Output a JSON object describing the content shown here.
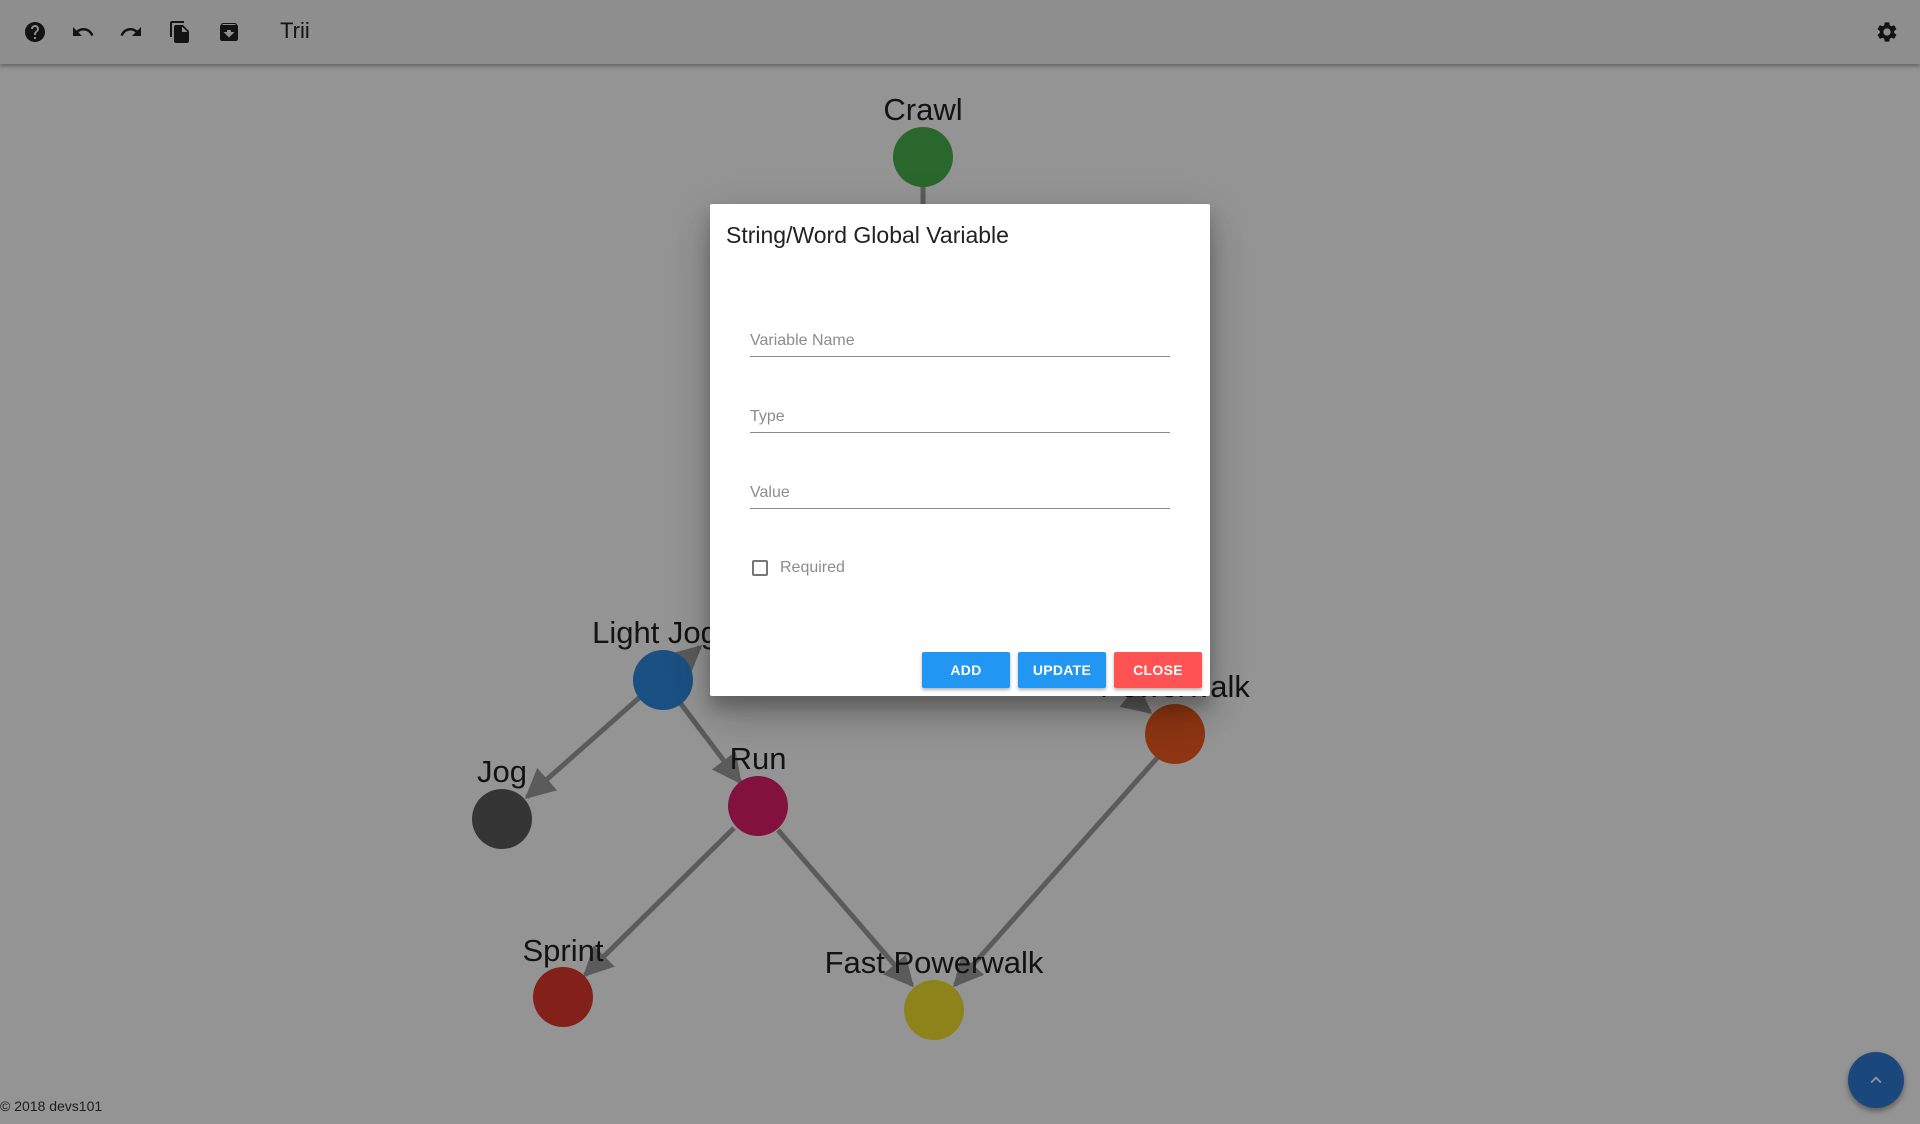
{
  "app": {
    "title": "Trii"
  },
  "toolbar": {
    "icons": [
      "help-icon",
      "undo-icon",
      "redo-icon",
      "copy-icon",
      "archive-icon",
      "settings-icon"
    ]
  },
  "graph": {
    "nodes": [
      {
        "label": "Crawl",
        "color": "#48b14d"
      },
      {
        "label": "Light Jog",
        "color": "#2f8ae0"
      },
      {
        "label": "Jog",
        "color": "#5c5c5c"
      },
      {
        "label": "Run",
        "color": "#e0206a"
      },
      {
        "label": "Sprint",
        "color": "#e2372c"
      },
      {
        "label": "Fast Powerwalk",
        "color": "#f2e42f"
      },
      {
        "label": "Powerwalk",
        "color": "#f55d22"
      }
    ],
    "edge_color": "#9e9e9e"
  },
  "dialog": {
    "title": "String/Word Global Variable",
    "fields": {
      "variable_name": {
        "placeholder": "Variable Name",
        "value": ""
      },
      "type": {
        "placeholder": "Type",
        "value": ""
      },
      "value": {
        "placeholder": "Value",
        "value": ""
      }
    },
    "required": {
      "label": "Required",
      "checked": false
    },
    "buttons": {
      "add": {
        "label": "ADD",
        "color": "#2196f3"
      },
      "update": {
        "label": "UPDATE",
        "color": "#2196f3"
      },
      "close": {
        "label": "CLOSE",
        "color": "#ff5252"
      }
    }
  },
  "footer": {
    "text": "© 2018 devs101"
  },
  "fab": {
    "icon": "chevron-up-icon",
    "color": "#2d7ad6"
  }
}
